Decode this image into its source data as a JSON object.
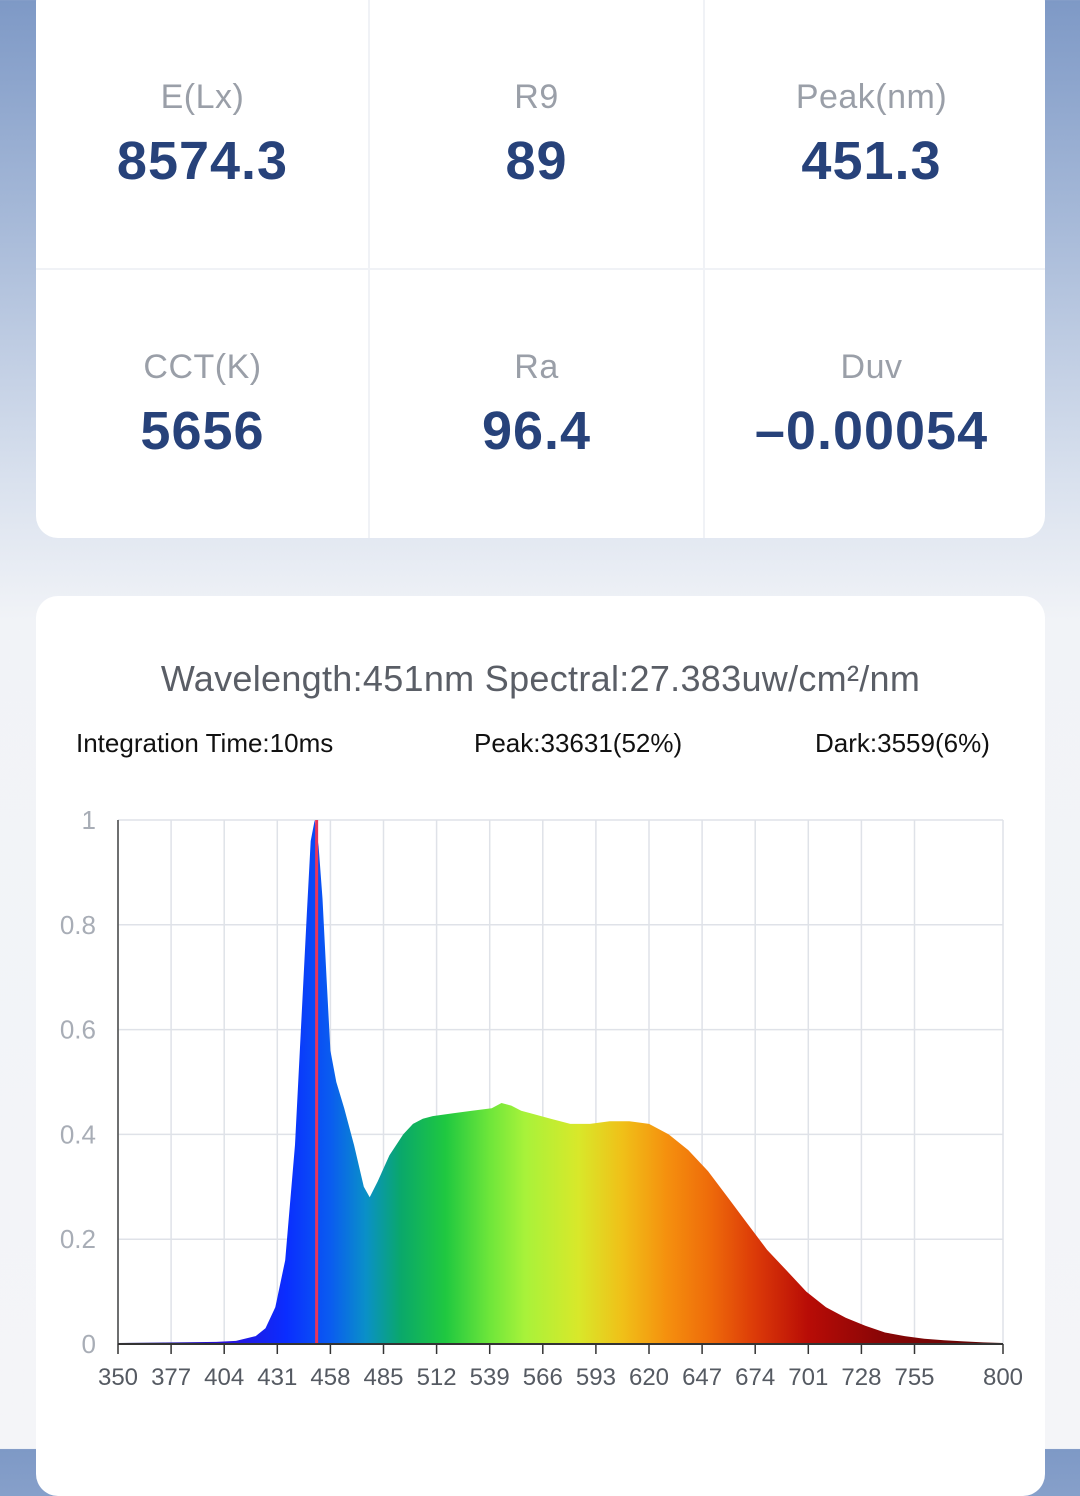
{
  "metrics": [
    {
      "label": "E(Lx)",
      "value": "8574.3"
    },
    {
      "label": "R9",
      "value": "89"
    },
    {
      "label": "Peak(nm)",
      "value": "451.3"
    },
    {
      "label": "CCT(K)",
      "value": "5656"
    },
    {
      "label": "Ra",
      "value": "96.4"
    },
    {
      "label": "Duv",
      "value": "–0.00054"
    }
  ],
  "spectrum": {
    "headline": "Wavelength:451nm Spectral:27.383uw/cm²/nm",
    "integration_time": "Integration Time:10ms",
    "peak": "Peak:33631(52%)",
    "dark": "Dark:3559(6%)"
  },
  "chart_data": {
    "type": "area",
    "x_ticks": [
      "350",
      "377",
      "404",
      "431",
      "458",
      "485",
      "512",
      "539",
      "566",
      "593",
      "620",
      "647",
      "674",
      "701",
      "728",
      "755",
      "800"
    ],
    "y_ticks": [
      "0",
      "0.2",
      "0.4",
      "0.6",
      "0.8",
      "1"
    ],
    "xlim": [
      350,
      800
    ],
    "ylim": [
      0,
      1
    ],
    "grid": true,
    "marker_wavelength": 451,
    "marker_color": "#e8365a",
    "series": [
      {
        "x": [
          350,
          380,
          400,
          410,
          420,
          425,
          430,
          435,
          440,
          443,
          446,
          448,
          450,
          452,
          454,
          456,
          458,
          461,
          465,
          470,
          475,
          478,
          482,
          488,
          495,
          500,
          505,
          510,
          520,
          530,
          540,
          545,
          550,
          555,
          560,
          570,
          580,
          590,
          600,
          610,
          620,
          630,
          640,
          650,
          660,
          670,
          680,
          690,
          700,
          710,
          720,
          730,
          740,
          750,
          760,
          770,
          780,
          790,
          800
        ],
        "y": [
          0.002,
          0.003,
          0.004,
          0.006,
          0.015,
          0.03,
          0.07,
          0.16,
          0.38,
          0.6,
          0.82,
          0.96,
          1.0,
          0.95,
          0.85,
          0.7,
          0.56,
          0.5,
          0.45,
          0.38,
          0.3,
          0.28,
          0.31,
          0.36,
          0.4,
          0.42,
          0.43,
          0.435,
          0.44,
          0.445,
          0.45,
          0.46,
          0.455,
          0.445,
          0.44,
          0.43,
          0.42,
          0.42,
          0.425,
          0.425,
          0.42,
          0.4,
          0.37,
          0.33,
          0.28,
          0.23,
          0.18,
          0.14,
          0.1,
          0.07,
          0.05,
          0.035,
          0.022,
          0.015,
          0.01,
          0.007,
          0.005,
          0.003,
          0.002
        ]
      }
    ]
  }
}
